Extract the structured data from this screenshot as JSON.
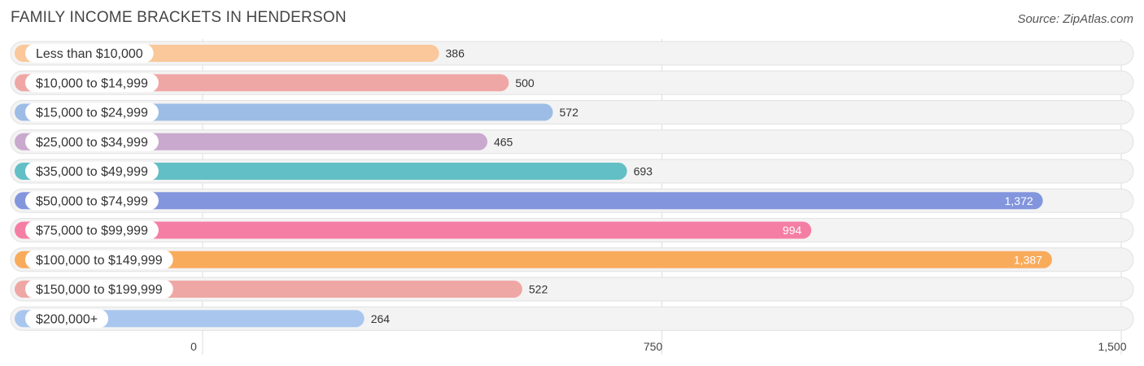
{
  "title": "FAMILY INCOME BRACKETS IN HENDERSON",
  "source": "Source: ZipAtlas.com",
  "chart_data": {
    "type": "bar",
    "orientation": "horizontal",
    "title": "FAMILY INCOME BRACKETS IN HENDERSON",
    "categories": [
      "Less than $10,000",
      "$10,000 to $14,999",
      "$15,000 to $24,999",
      "$25,000 to $34,999",
      "$35,000 to $49,999",
      "$50,000 to $74,999",
      "$75,000 to $99,999",
      "$100,000 to $149,999",
      "$150,000 to $199,999",
      "$200,000+"
    ],
    "values": [
      386,
      500,
      572,
      465,
      693,
      1372,
      994,
      1387,
      522,
      264
    ],
    "value_labels": [
      "386",
      "500",
      "572",
      "465",
      "693",
      "1,372",
      "994",
      "1,387",
      "522",
      "264"
    ],
    "colors": [
      "#fac89a",
      "#efa7a5",
      "#9dbde6",
      "#c9a9cd",
      "#62bfc6",
      "#8395dd",
      "#f57ea5",
      "#f9ab5c",
      "#efa7a5",
      "#a9c7ee"
    ],
    "xlim": [
      0,
      1500
    ],
    "xticks": [
      0,
      750,
      1500
    ],
    "xtick_labels": [
      "0",
      "750",
      "1,500"
    ],
    "grid": true,
    "xlabel": "",
    "ylabel": ""
  }
}
